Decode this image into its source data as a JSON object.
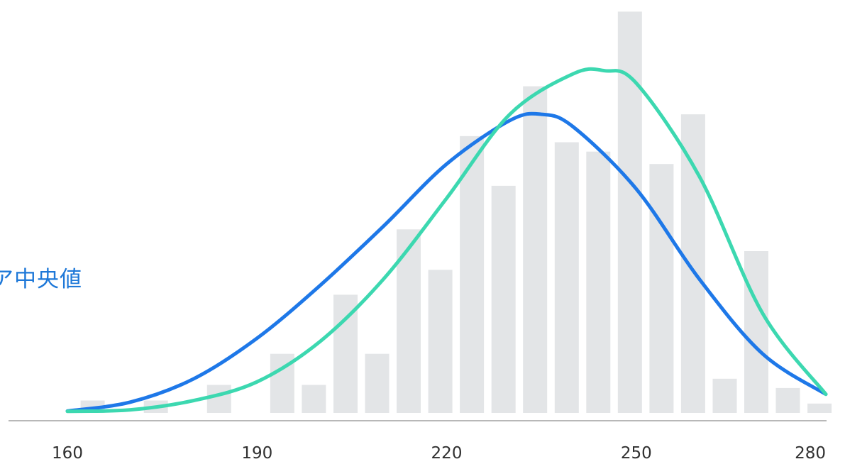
{
  "chart_data": {
    "type": "bar",
    "annotation_text": "ア中央値",
    "x_ticks": [
      "160",
      "190",
      "220",
      "250",
      "280"
    ],
    "x_tick_values": [
      160,
      190,
      220,
      250,
      280
    ],
    "xlim": [
      160,
      280
    ],
    "ylim": [
      0,
      13
    ],
    "grid": false,
    "bars": {
      "x": [
        164,
        174,
        184,
        194,
        199,
        204,
        209,
        214,
        219,
        224,
        229,
        234,
        239,
        244,
        249,
        254,
        259,
        264,
        269,
        274,
        279
      ],
      "values": [
        0.4,
        0.4,
        0.9,
        1.9,
        0.9,
        3.8,
        1.9,
        5.9,
        4.6,
        8.9,
        7.3,
        10.5,
        8.7,
        8.4,
        12.9,
        8.0,
        9.6,
        1.1,
        5.2,
        0.8,
        0.3
      ]
    },
    "series": [
      {
        "type": "curve",
        "color": "#1e78e8",
        "x": [
          160,
          170,
          180,
          190,
          200,
          210,
          220,
          230,
          235,
          240,
          250,
          260,
          270,
          280
        ],
        "values": [
          0.06,
          0.35,
          1.1,
          2.4,
          4.1,
          6.0,
          8.0,
          9.4,
          9.6,
          9.2,
          7.2,
          4.3,
          1.9,
          0.6
        ]
      },
      {
        "type": "curve",
        "color": "#3cd8b0",
        "x": [
          160,
          170,
          180,
          190,
          200,
          210,
          220,
          230,
          240,
          245,
          250,
          260,
          270,
          280
        ],
        "values": [
          0.05,
          0.1,
          0.4,
          1.0,
          2.3,
          4.3,
          6.9,
          9.6,
          10.9,
          11.0,
          10.6,
          7.6,
          3.2,
          0.6
        ]
      }
    ],
    "colors": {
      "bar": "#e3e5e7",
      "axis": "#b8b8b8",
      "curve_primary": "#1e78e8",
      "curve_secondary": "#3cd8b0",
      "annotation": "#1e78d8"
    }
  }
}
